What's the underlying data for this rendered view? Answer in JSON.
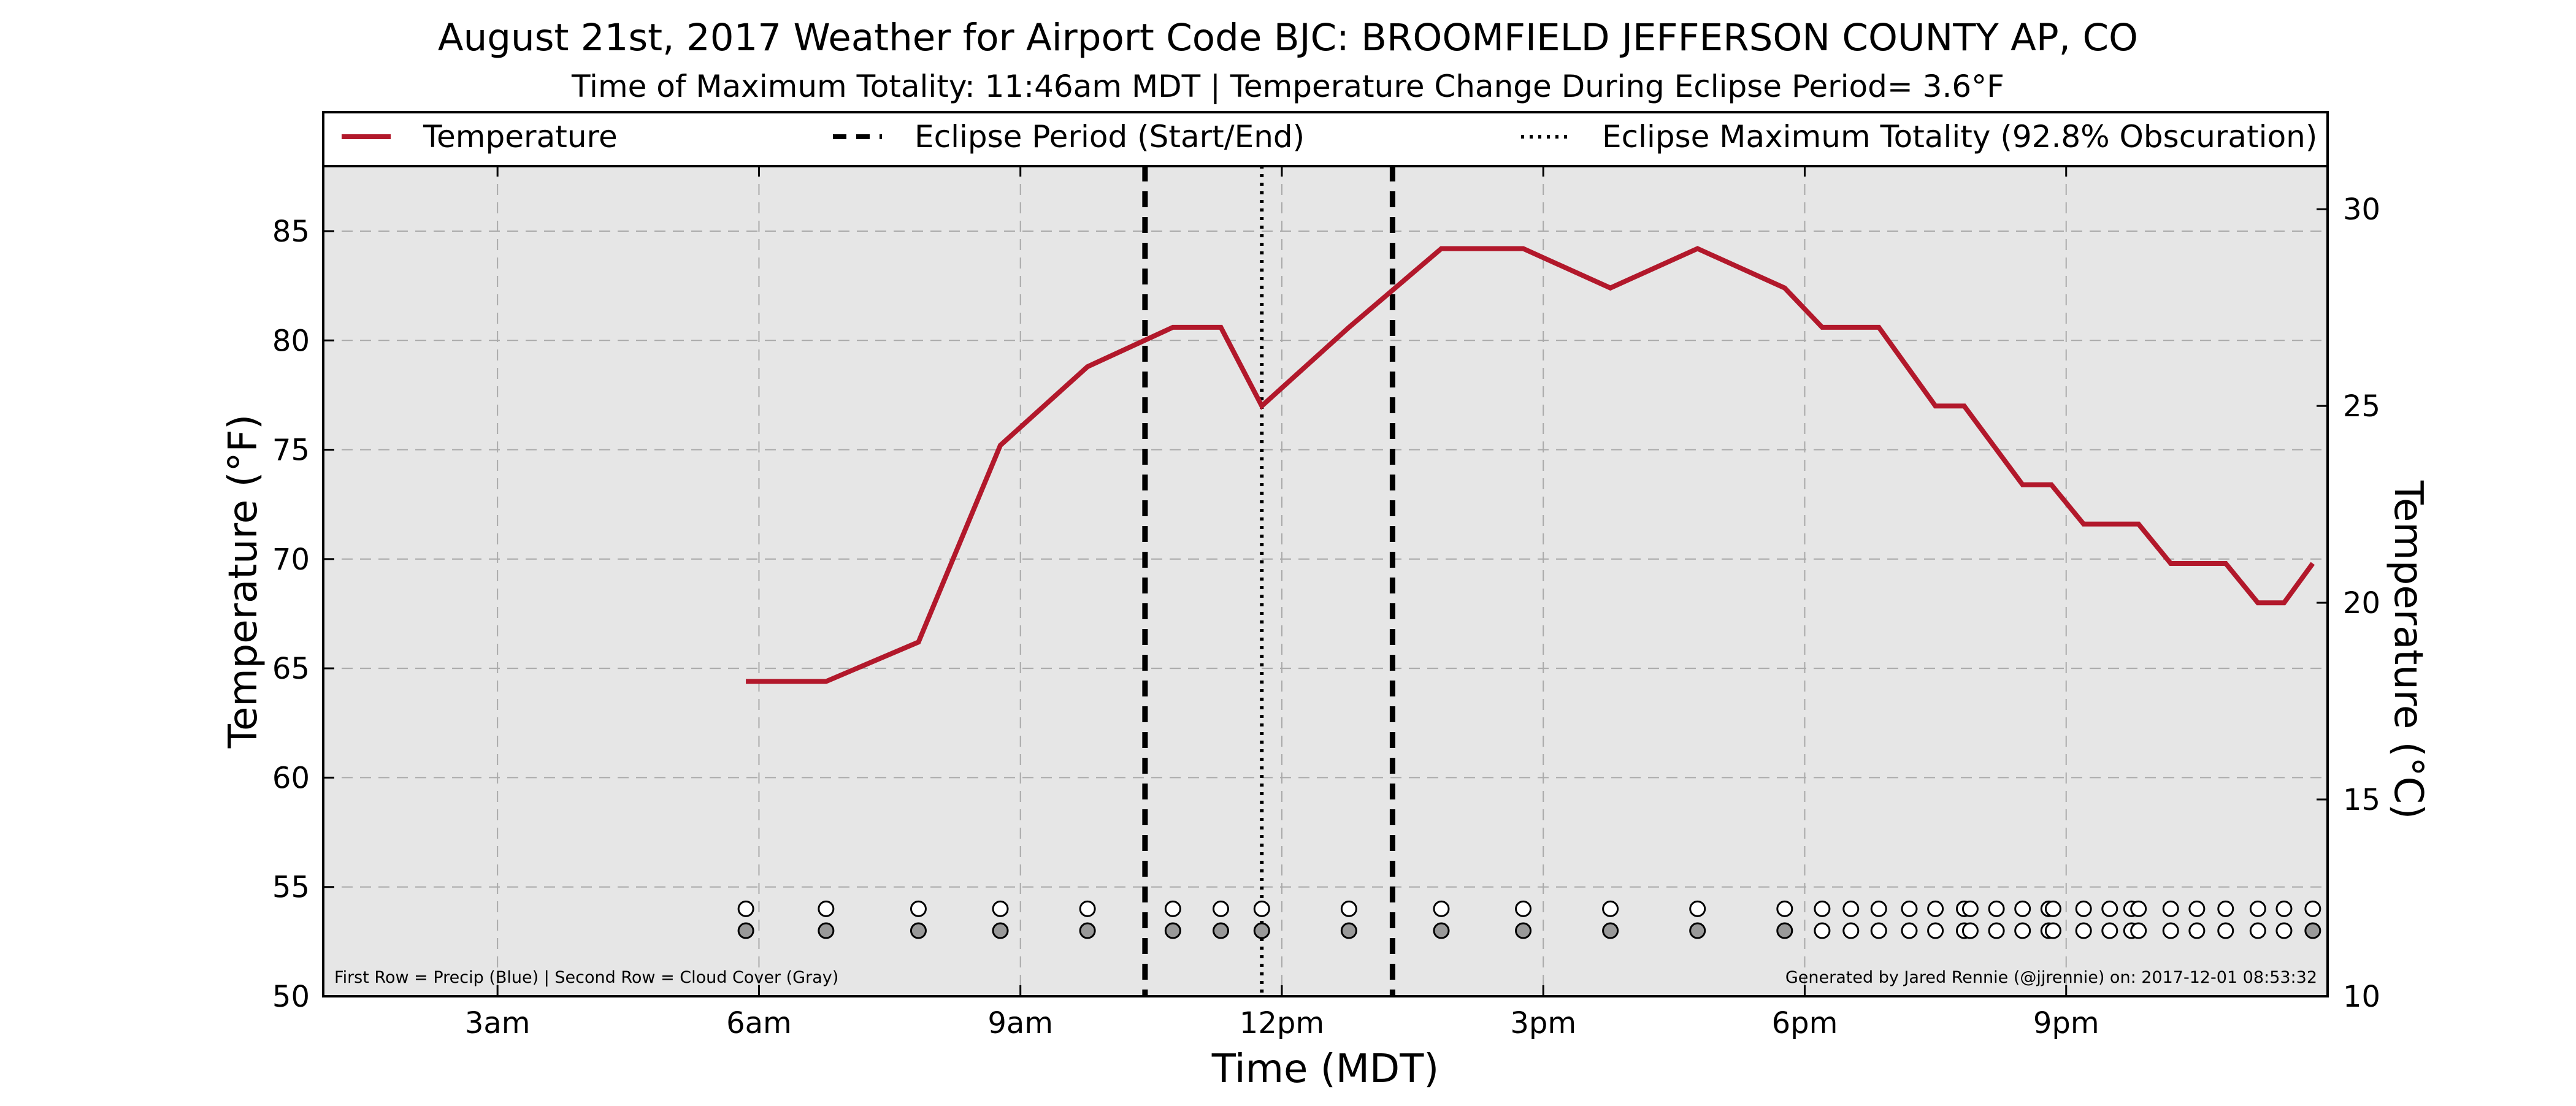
{
  "chart_data": {
    "type": "line",
    "title": "August 21st, 2017 Weather for Airport Code BJC: BROOMFIELD JEFFERSON COUNTY AP, CO",
    "subtitle": "Time of Maximum Totality: 11:46am MDT | Temperature Change During Eclipse Period= 3.6°F",
    "xlabel": "Time (MDT)",
    "ylabel": "Temperature (°F)",
    "ylabel_right": "Temperature (°C)",
    "x_unit": "hours",
    "xlim": [
      1,
      24
    ],
    "ylim": [
      50,
      88
    ],
    "ylim_right": [
      10,
      31.11
    ],
    "x_ticks": [
      {
        "value": 3,
        "label": "3am"
      },
      {
        "value": 6,
        "label": "6am"
      },
      {
        "value": 9,
        "label": "9am"
      },
      {
        "value": 12,
        "label": "12pm"
      },
      {
        "value": 15,
        "label": "3pm"
      },
      {
        "value": 18,
        "label": "6pm"
      },
      {
        "value": 21,
        "label": "9pm"
      }
    ],
    "y_ticks": [
      50,
      55,
      60,
      65,
      70,
      75,
      80,
      85
    ],
    "y_ticks_right": [
      10,
      15,
      20,
      25,
      30
    ],
    "grid": true,
    "legend_position": "top",
    "legend": {
      "temperature": "Temperature",
      "eclipse_period": "Eclipse Period (Start/End)",
      "eclipse_max": "Eclipse Maximum Totality (92.8% Obscuration)"
    },
    "series": [
      {
        "name": "Temperature",
        "color": "#b2182b",
        "x": [
          5.85,
          6.77,
          7.83,
          8.77,
          9.77,
          10.75,
          11.3,
          11.77,
          12.77,
          13.83,
          14.77,
          15.77,
          16.77,
          17.77,
          18.2,
          18.85,
          19.5,
          19.83,
          20.5,
          20.83,
          21.2,
          21.83,
          22.2,
          22.83,
          23.2,
          23.5,
          23.83
        ],
        "y": [
          64.4,
          64.4,
          66.2,
          75.2,
          78.8,
          80.6,
          80.6,
          77.0,
          80.6,
          84.2,
          84.2,
          82.4,
          84.2,
          82.4,
          80.6,
          80.6,
          77.0,
          77.0,
          73.4,
          73.4,
          71.6,
          71.6,
          69.8,
          69.8,
          68.0,
          68.0,
          69.8
        ]
      }
    ],
    "eclipse_period": [
      10.43,
      13.27
    ],
    "eclipse_maximum": 11.77,
    "precip_row": {
      "y": 54,
      "x": [
        5.85,
        6.77,
        7.83,
        8.77,
        9.77,
        10.75,
        11.3,
        11.77,
        12.77,
        13.83,
        14.77,
        15.77,
        16.77,
        17.77,
        18.2,
        18.53,
        18.85,
        19.2,
        19.5,
        19.83,
        19.9,
        20.2,
        20.5,
        20.8,
        20.85,
        21.2,
        21.5,
        21.75,
        21.83,
        22.2,
        22.5,
        22.83,
        23.2,
        23.5,
        23.83
      ],
      "color": "#ffffff"
    },
    "cloud_row": {
      "y": 53,
      "x": [
        5.85,
        6.77,
        7.83,
        8.77,
        9.77,
        10.75,
        11.3,
        11.77,
        12.77,
        13.83,
        14.77,
        15.77,
        16.77,
        17.77,
        18.2,
        18.53,
        18.85,
        19.2,
        19.5,
        19.83,
        19.9,
        20.2,
        20.5,
        20.8,
        20.85,
        21.2,
        21.5,
        21.75,
        21.83,
        22.2,
        22.5,
        22.83,
        23.2,
        23.5,
        23.83
      ],
      "colors": [
        "#999999",
        "#999999",
        "#999999",
        "#999999",
        "#999999",
        "#999999",
        "#999999",
        "#999999",
        "#999999",
        "#999999",
        "#999999",
        "#999999",
        "#999999",
        "#999999",
        "#ffffff",
        "#ffffff",
        "#ffffff",
        "#ffffff",
        "#ffffff",
        "#ffffff",
        "#ffffff",
        "#ffffff",
        "#ffffff",
        "#ffffff",
        "#ffffff",
        "#ffffff",
        "#ffffff",
        "#ffffff",
        "#ffffff",
        "#ffffff",
        "#ffffff",
        "#ffffff",
        "#ffffff",
        "#ffffff",
        "#999999"
      ]
    },
    "annotations": {
      "left": "First Row = Precip (Blue) | Second Row = Cloud Cover (Gray)",
      "right": "Generated by Jared Rennie (@jjrennie) on: 2017-12-01 08:53:32"
    },
    "plot_background": "#e6e6e6",
    "grid_color": "#aaaaaa"
  }
}
